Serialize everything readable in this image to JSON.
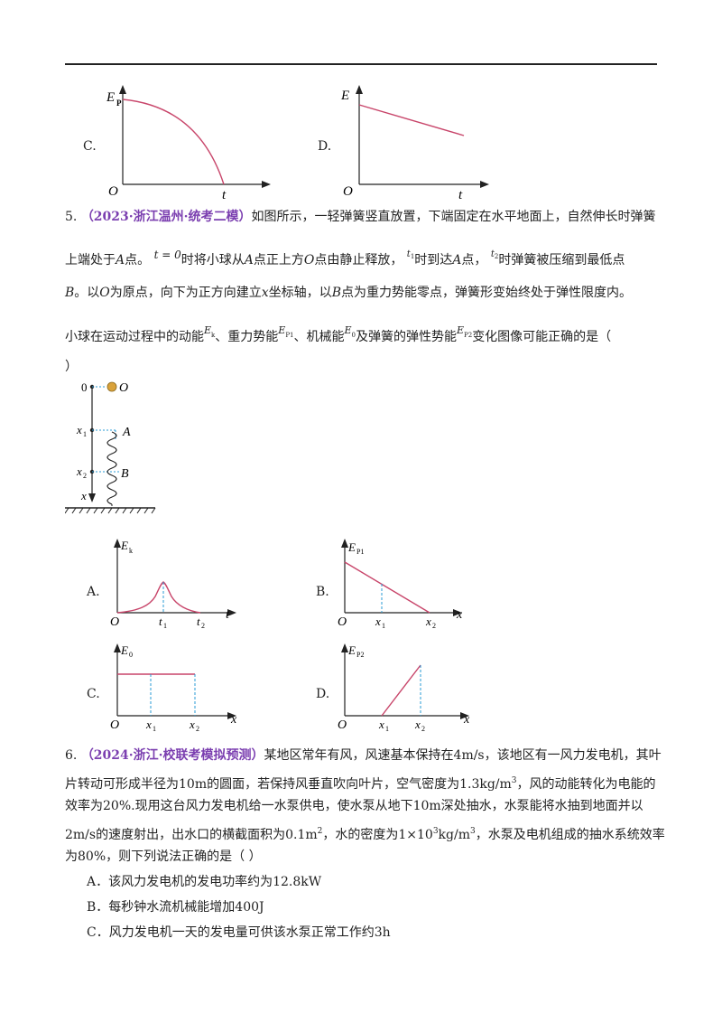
{
  "graphs_prev": {
    "c": {
      "label": "C.",
      "y_axis": "E",
      "y_sub": "P",
      "x_axis": "t",
      "origin": "O"
    },
    "d": {
      "label": "D.",
      "y_axis": "E",
      "x_axis": "t",
      "origin": "O"
    }
  },
  "q5": {
    "number": "5.",
    "source": "（2023·浙江温州·统考二模）",
    "line1": "如图所示，一轻弹簧竖直放置，下端固定在水平地面上，自然伸长时弹簧",
    "line2a": "上端处于",
    "pointA": "A",
    "line2b": "点。",
    "t0": "t = 0",
    "line2c": "时将小球从",
    "line2d": "点正上方",
    "pointO": "O",
    "line2e": "点由静止释放，",
    "t1": "t",
    "t1sub": "1",
    "line2f": "时到达",
    "line2g": "点，",
    "t2": "t",
    "t2sub": "2",
    "line2h": "时弹簧被压缩到最低点",
    "line3a": "B",
    "line3b": "。以",
    "line3c": "为原点，向下为正方向建立",
    "line3x": "x",
    "line3d": "坐标轴，以",
    "line3e": "点为重力势能零点，弹簧形变始终处于弹性限度内。",
    "line4a": "小球在运动过程中的动能",
    "ek": "E",
    "ek_sub": "k",
    "line4b": "、重力势能",
    "ep1": "E",
    "ep1_sub": "P1",
    "line4c": "、机械能",
    "e0": "E",
    "e0_sub": "0",
    "line4d": "及弹簧的弹性势能",
    "ep2": "E",
    "ep2_sub": "P2",
    "line4e": "变化图像可能正确的是（",
    "line5": "）",
    "figure": {
      "zero": "0",
      "O": "O",
      "x1": "x",
      "x1sub": "1",
      "A": "A",
      "x2": "x",
      "x2sub": "2",
      "B": "B",
      "x": "x"
    },
    "options": {
      "a": {
        "label": "A.",
        "y": "E",
        "y_sub": "k",
        "origin": "O",
        "t1": "t",
        "t1sub": "1",
        "t2": "t",
        "t2sub": "2",
        "axis": "t"
      },
      "b": {
        "label": "B.",
        "y": "E",
        "y_sub": "P1",
        "origin": "O",
        "x1": "x",
        "x1sub": "1",
        "x2": "x",
        "x2sub": "2",
        "axis": "x"
      },
      "c": {
        "label": "C.",
        "y": "E",
        "y_sub": "0",
        "origin": "O",
        "x1": "x",
        "x1sub": "1",
        "x2": "x",
        "x2sub": "2",
        "axis": "x"
      },
      "d": {
        "label": "D.",
        "y": "E",
        "y_sub": "P2",
        "origin": "O",
        "x1": "x",
        "x1sub": "1",
        "x2": "x",
        "x2sub": "2",
        "axis": "x"
      }
    }
  },
  "q6": {
    "number": "6.",
    "source": "（2024·浙江·校联考模拟预测）",
    "line1": "某地区常年有风，风速基本保持在4m/s，该地区有一风力发电机，其叶",
    "line2a": "片转动可形成半径为10m的圆面，若保持风垂直吹向叶片，空气密度为1.3kg/m",
    "line2sup": "3",
    "line2b": "，风的动能转化为电能的",
    "line3": "效率为20%.现用这台风力发电机给一水泵供电，使水泵从地下10m深处抽水，水泵能将水抽到地面并以",
    "line4a": "2m/s的速度射出，出水口的横截面积为0.1m",
    "line4sup1": "2",
    "line4b": "，水的密度为1×10",
    "line4sup2": "3",
    "line4c": "kg/m",
    "line4sup3": "3",
    "line4d": "，水泵及电机组成的抽水系统效率",
    "line5": "为80%，则下列说法正确的是（    ）",
    "optA": "A．该风力发电机的发电功率约为12.8kW",
    "optB": "B．每秒钟水流机械能增加400J",
    "optC": "C．风力发电机一天的发电量可供该水泵正常工作约3h"
  },
  "colors": {
    "curve": "#c8456a",
    "dash": "#2a9bd6",
    "source": "#7b3fb0",
    "ball": "#d9a23a"
  }
}
